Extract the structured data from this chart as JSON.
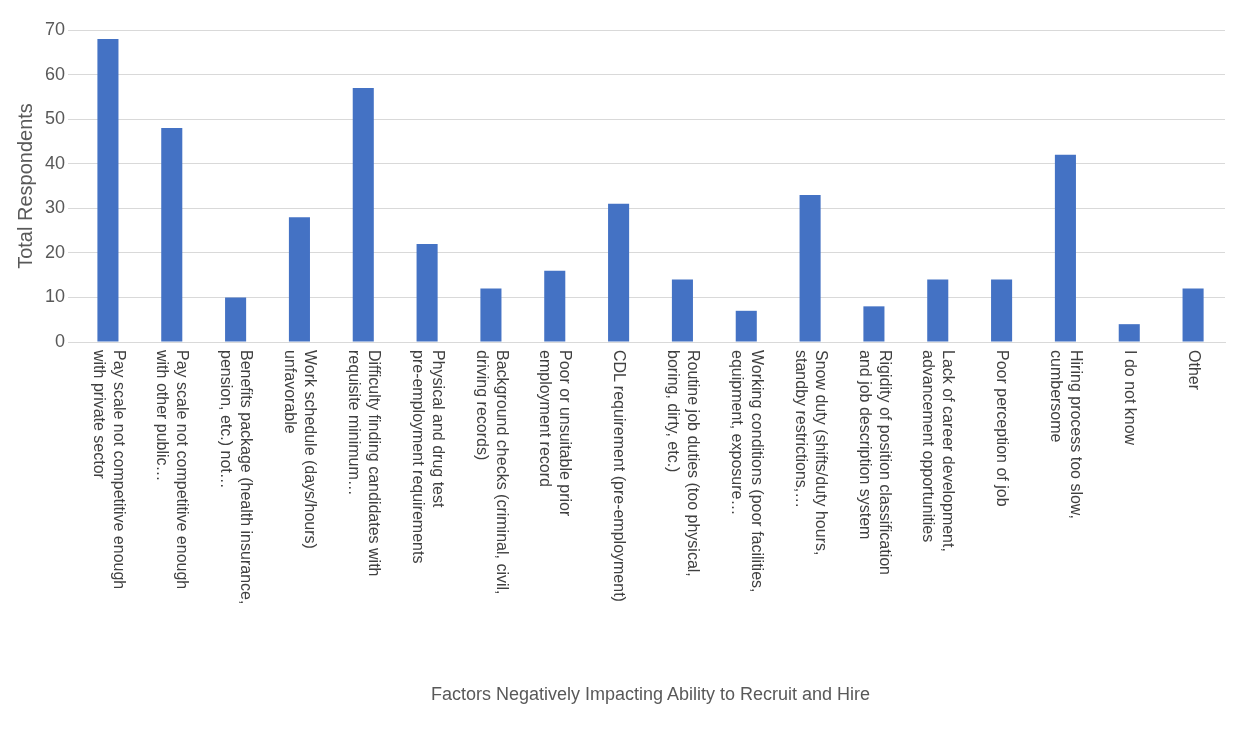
{
  "chart_data": {
    "type": "bar",
    "xlabel": "Factors Negatively Impacting Ability to Recruit and Hire",
    "ylabel": "Total Respondents",
    "categories": [
      "Pay scale not competitive enough with private sector",
      "Pay scale not competitive enough with other public…",
      "Benefits package (health insurance, pension, etc.) not…",
      "Work schedule (days/hours) unfavorable",
      "Difficulty finding candidates with requisite minimum…",
      "Physical and drug test pre-employment requirements",
      "Background checks (criminal, civil, driving records)",
      "Poor or unsuitable prior employment record",
      "CDL requirement (pre-employment)",
      "Routine job duties (too physical, boring, dirty, etc.)",
      "Working conditions (poor facilities, equipment, exposure…",
      "Snow duty (shifts/duty hours, standby restrictions,…",
      "Rigidity of position classification and job description system",
      "Lack of career development, advancement opportunities",
      "Poor perception of job",
      "Hiring process too slow, cumbersome",
      "I do not know",
      "Other"
    ],
    "values": [
      68,
      48,
      10,
      28,
      57,
      22,
      12,
      16,
      31,
      14,
      7,
      33,
      8,
      14,
      14,
      42,
      4,
      12
    ],
    "color": "#4472c4",
    "ylim": [
      0,
      70
    ],
    "yticks": [
      0,
      10,
      20,
      30,
      40,
      50,
      60,
      70
    ],
    "grid": "y",
    "legend": false
  }
}
